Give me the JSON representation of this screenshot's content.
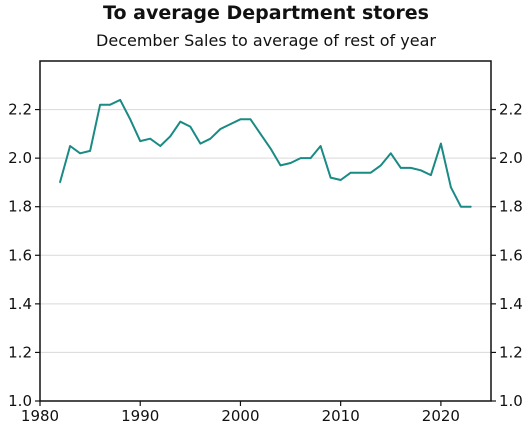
{
  "chart_data": {
    "type": "line",
    "title": "To average Department stores",
    "subtitle": "December Sales to average of rest of year",
    "xlabel": "",
    "ylabel": "",
    "xlim": [
      1980,
      2025
    ],
    "ylim": [
      1.0,
      2.4
    ],
    "x_ticks": [
      1980,
      1990,
      2000,
      2010,
      2020
    ],
    "y_ticks": [
      1.0,
      1.2,
      1.4,
      1.6,
      1.8,
      2.0,
      2.2
    ],
    "y_tick_labels": [
      "1.0",
      "1.2",
      "1.4",
      "1.6",
      "1.8",
      "2.0",
      "2.2"
    ],
    "grid": "horizontal",
    "line_color": "#1a8a85",
    "series": [
      {
        "x": [
          1982,
          1983,
          1984,
          1985,
          1986,
          1987,
          1988,
          1989,
          1990,
          1991,
          1992,
          1993,
          1994,
          1995,
          1996,
          1997,
          1998,
          1999,
          2000,
          2001,
          2002,
          2003,
          2004,
          2005,
          2006,
          2007,
          2008,
          2009,
          2010,
          2011,
          2012,
          2013,
          2014,
          2015,
          2016,
          2017,
          2018,
          2019,
          2020,
          2021,
          2022,
          2023
        ],
        "values": [
          1.9,
          2.05,
          2.02,
          2.03,
          2.22,
          2.22,
          2.24,
          2.16,
          2.07,
          2.08,
          2.05,
          2.09,
          2.15,
          2.13,
          2.06,
          2.08,
          2.12,
          2.14,
          2.16,
          2.16,
          2.1,
          2.04,
          1.97,
          1.98,
          2.0,
          2.0,
          2.05,
          1.92,
          1.91,
          1.94,
          1.94,
          1.94,
          1.97,
          2.02,
          1.96,
          1.96,
          1.95,
          1.93,
          2.06,
          1.88,
          1.8,
          1.8
        ]
      }
    ]
  }
}
